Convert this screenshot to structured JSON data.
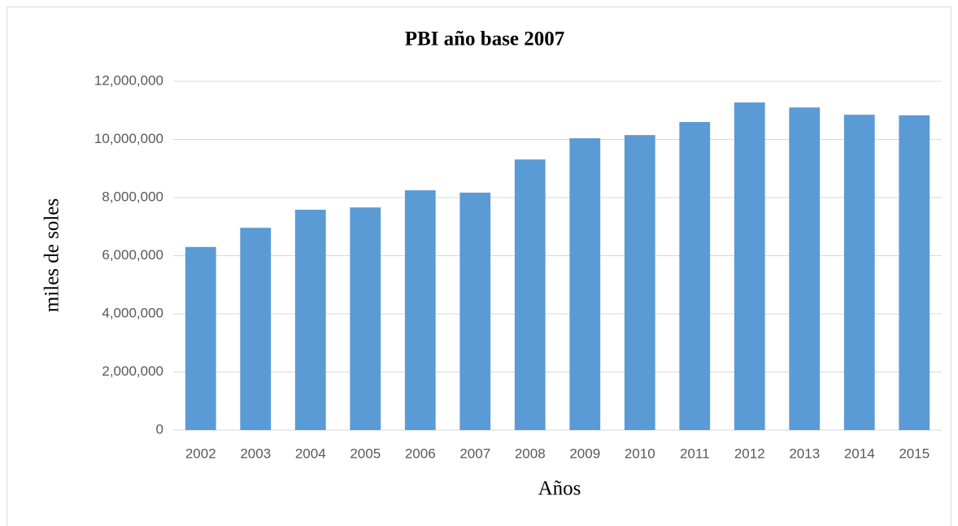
{
  "chart_data": {
    "type": "bar",
    "title": "PBI año base 2007",
    "x_label": "Años",
    "y_label": "miles de soles",
    "categories": [
      "2002",
      "2003",
      "2004",
      "2005",
      "2006",
      "2007",
      "2008",
      "2009",
      "2010",
      "2011",
      "2012",
      "2013",
      "2014",
      "2015"
    ],
    "values": [
      6300000,
      6960000,
      7580000,
      7660000,
      8250000,
      8170000,
      9310000,
      10040000,
      10150000,
      10600000,
      11270000,
      11100000,
      10850000,
      10830000
    ],
    "color": "#5b9bd5",
    "ylim": [
      0,
      12000000
    ],
    "yticks": [
      0,
      {
        "value": 2000000,
        "label": "2,000,000"
      },
      {
        "value": 4000000,
        "label": "4,000,000"
      },
      {
        "value": 6000000,
        "label": "6,000,000"
      },
      {
        "value": 8000000,
        "label": "8,000,000"
      },
      {
        "value": 10000000,
        "label": "10,000,000"
      },
      {
        "value": 12000000,
        "label": "12,000,000"
      }
    ],
    "grid": true
  }
}
